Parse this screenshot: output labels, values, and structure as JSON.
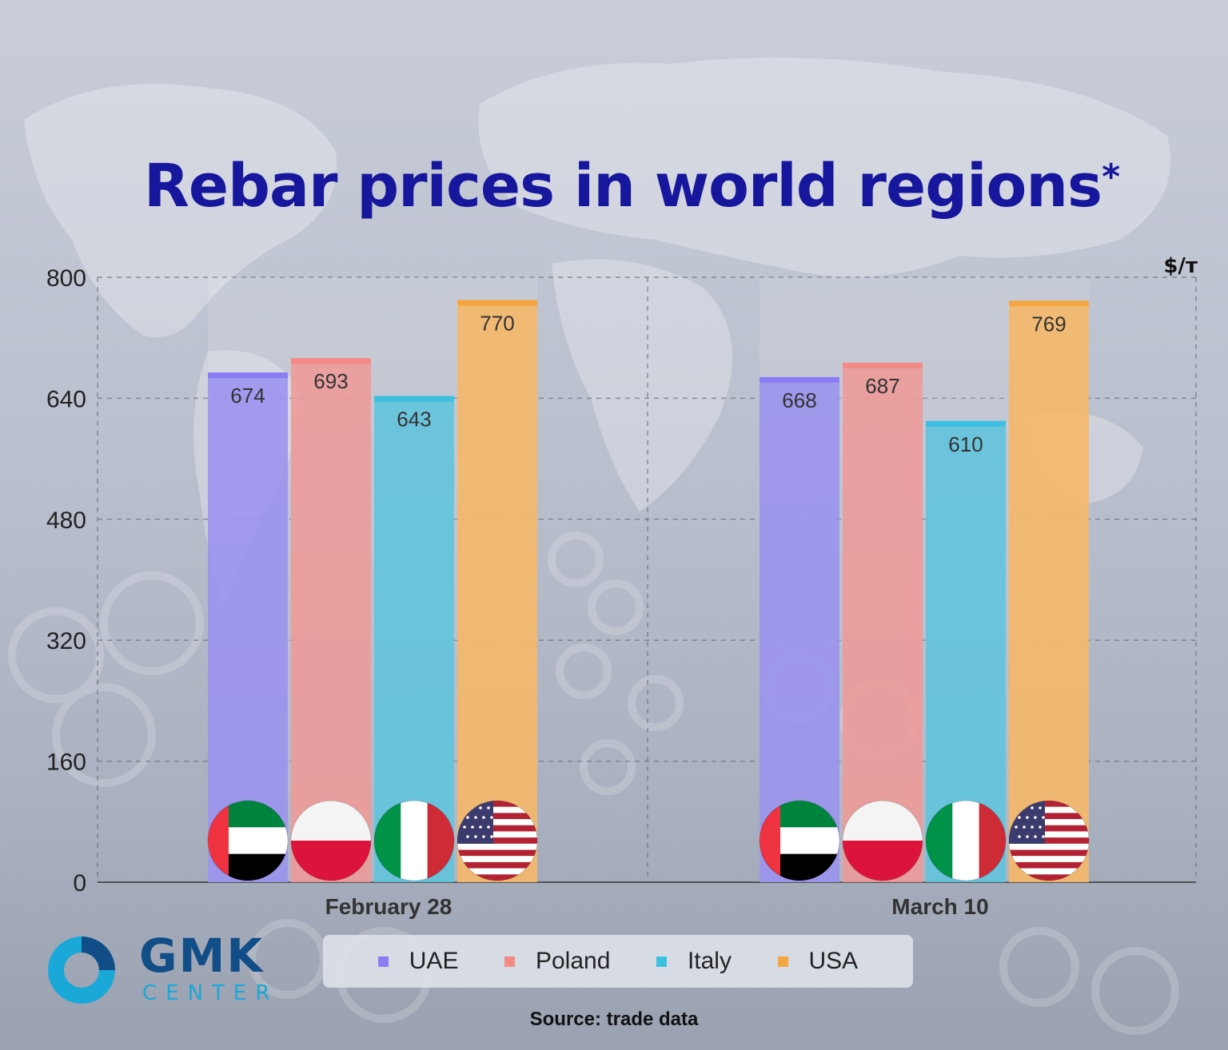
{
  "title": "Rebar prices in world regions",
  "title_mark": "*",
  "unit": "$/т",
  "source": "Source: trade data",
  "logo": {
    "name": "GMK",
    "subname": "CENTER"
  },
  "colors": {
    "title": "#16179c",
    "UAE": "#9a92ef",
    "Poland": "#ee9a97",
    "Italy": "#5fc4dd",
    "USA": "#f6b767"
  },
  "chart_data": {
    "type": "bar",
    "title": "Rebar prices in world regions*",
    "ylabel": "$/т",
    "xlabel": "",
    "ylim": [
      0,
      800
    ],
    "yticks": [
      0,
      160,
      320,
      480,
      640,
      800
    ],
    "grid": true,
    "legend_position": "bottom",
    "categories": [
      "February 28",
      "March 10"
    ],
    "series": [
      {
        "name": "UAE",
        "values": [
          674,
          668
        ],
        "color": "#9a92ef",
        "accent": "#8a7df5",
        "flag": "uae-flag-icon"
      },
      {
        "name": "Poland",
        "values": [
          693,
          687
        ],
        "color": "#ee9a97",
        "accent": "#f38a85",
        "flag": "poland-flag-icon"
      },
      {
        "name": "Italy",
        "values": [
          643,
          610
        ],
        "color": "#5fc4dd",
        "accent": "#3cc0e0",
        "flag": "italy-flag-icon"
      },
      {
        "name": "USA",
        "values": [
          770,
          769
        ],
        "color": "#f6b767",
        "accent": "#f4a640",
        "flag": "usa-flag-icon"
      }
    ]
  }
}
